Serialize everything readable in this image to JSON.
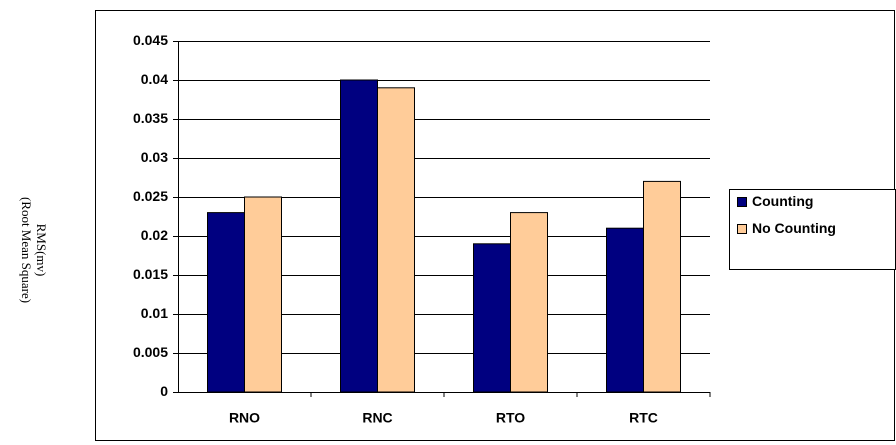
{
  "chart_data": {
    "type": "bar",
    "ylabel": [
      "RMS(mv)",
      "(Root Mean Square)"
    ],
    "categories": [
      "RNO",
      "RNC",
      "RTO",
      "RTC"
    ],
    "series": [
      {
        "name": "Counting",
        "color": "#000080",
        "values": [
          0.023,
          0.04,
          0.019,
          0.021
        ]
      },
      {
        "name": "No Counting",
        "color": "#ffcc99",
        "values": [
          0.025,
          0.039,
          0.023,
          0.027
        ]
      }
    ],
    "ylim": [
      0,
      0.045
    ],
    "yticks": [
      0,
      0.005,
      0.01,
      0.015,
      0.02,
      0.025,
      0.03,
      0.035,
      0.04,
      0.045
    ],
    "grid": true,
    "legend": "right"
  }
}
